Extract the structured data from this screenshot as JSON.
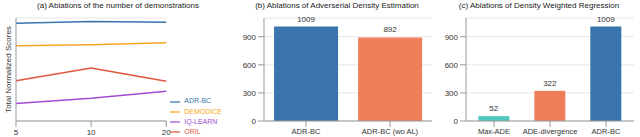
{
  "chart_data": [
    {
      "type": "line",
      "title": "(a) Ablations of the number of demonstrations",
      "y_label": "Total Normalized Scores",
      "categories": [
        "5",
        "10",
        "20"
      ],
      "series": [
        {
          "name": "ORIL",
          "color": "#e2553f",
          "values": [
            390,
            515,
            385
          ]
        },
        {
          "name": "IQ-LEARN",
          "color": "#a24dd1",
          "values": [
            170,
            220,
            290
          ]
        },
        {
          "name": "DEMODICE",
          "color": "#f5a623",
          "values": [
            730,
            740,
            760
          ]
        },
        {
          "name": "ADR-BC",
          "color": "#3a74ad",
          "values": [
            950,
            965,
            958
          ]
        }
      ],
      "ylim": [
        0,
        1000
      ],
      "yticks": [
        0,
        250,
        500,
        750,
        1000
      ],
      "tick_labels": "x",
      "grid": true,
      "legend": "lower right"
    },
    {
      "type": "bar",
      "title": "(b) Ablations of Adverserial Density Estimation",
      "categories": [
        "ADR-BC",
        "ADR-BC (wo AL)"
      ],
      "values": [
        1009,
        892
      ],
      "colors": [
        "#3a74ad",
        "#ef7f5a"
      ],
      "ylim": [
        0,
        1100
      ],
      "yticks": [
        0,
        300,
        600,
        900
      ],
      "grid": true,
      "data_labels": true
    },
    {
      "type": "bar",
      "title": "(c) Ablations of Density Weighted Regression",
      "categories": [
        "Max-ADE",
        "ADE-divergence",
        "ADR-BC"
      ],
      "values": [
        52,
        322,
        1009
      ],
      "colors": [
        "#4fc9bf",
        "#ef7f5a",
        "#3a74ad"
      ],
      "ylim": [
        0,
        1100
      ],
      "yticks": [
        0,
        300,
        600,
        900
      ],
      "grid": true,
      "data_labels": true
    }
  ]
}
